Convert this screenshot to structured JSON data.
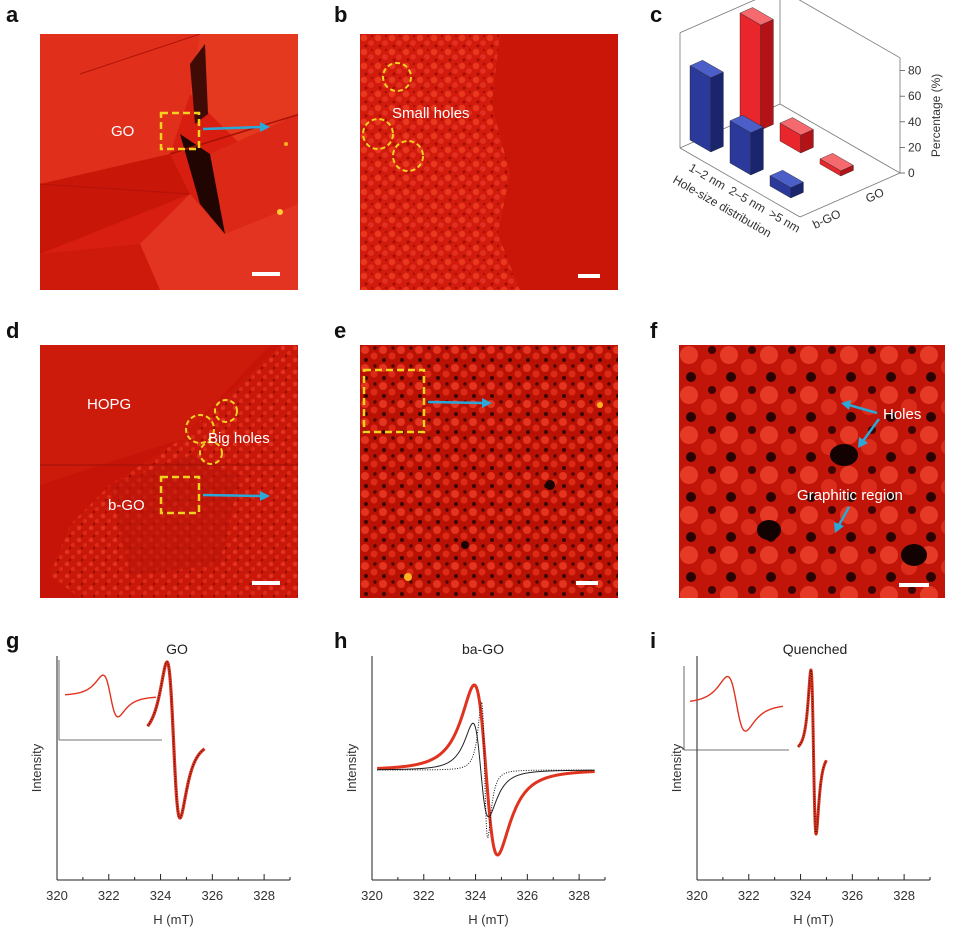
{
  "panel_letters": [
    "a",
    "b",
    "c",
    "d",
    "e",
    "f",
    "g",
    "h",
    "i"
  ],
  "afm": {
    "a": {
      "label_go": "GO"
    },
    "b": {
      "label_small_holes": "Small holes"
    },
    "d": {
      "label_hopg": "HOPG",
      "label_big_holes": "Big holes",
      "label_bgo": "b-GO"
    },
    "f": {
      "label_holes": "Holes",
      "label_graphitic": "Graphitic region"
    }
  },
  "colors": {
    "afm_red": "#d81e10",
    "arrow_blue": "#2aa8d8",
    "box_yellow": "#f2d21e",
    "bar_red": "#e8262b",
    "bar_blue": "#2b3a9a",
    "bgo_text": "#1e8fd6",
    "go_text": "#e8262b",
    "epr_fit": "#e0331f"
  },
  "chart_data": [
    {
      "type": "bar",
      "panel": "c",
      "title": "",
      "categories": [
        "1–2 nm",
        "2–5 nm",
        ">5 nm"
      ],
      "xlabel": "Hole-size distribution",
      "ylabel": "Percentage (%)",
      "zlim": [
        0,
        90
      ],
      "zticks": [
        "0",
        "20",
        "40",
        "60",
        "80"
      ],
      "series": [
        {
          "name": "b-GO",
          "values": [
            58,
            33,
            8
          ]
        },
        {
          "name": "GO",
          "values": [
            82,
            14,
            4
          ]
        }
      ]
    },
    {
      "type": "line",
      "panel": "g",
      "title": "GO",
      "xlabel": "H (mT)",
      "ylabel": "Intensity",
      "xlim": [
        320,
        329
      ],
      "xticks": [
        "320",
        "322",
        "324",
        "326",
        "328"
      ],
      "center": 324.5,
      "linewidth": 0.25,
      "range": [
        323.5,
        325.7
      ]
    },
    {
      "type": "line",
      "panel": "h",
      "title": "ba-GO",
      "xlabel": "H (mT)",
      "ylabel": "Intensity",
      "xlim": [
        320,
        329
      ],
      "xticks": [
        "320",
        "322",
        "324",
        "326",
        "328"
      ],
      "series": [
        {
          "name": "",
          "center": 324.4,
          "linewidth": 0.45,
          "amp": 1.0
        },
        {
          "name": "",
          "center": 324.2,
          "linewidth": 0.3,
          "amp": 0.55
        },
        {
          "name": "",
          "center": 324.35,
          "linewidth": 0.12,
          "amp": 0.8
        }
      ],
      "range": [
        320.2,
        328.6
      ]
    },
    {
      "type": "line",
      "panel": "i",
      "title": "Quenched",
      "xlabel": "H (mT)",
      "ylabel": "Intensity",
      "xlim": [
        320,
        329
      ],
      "xticks": [
        "320",
        "322",
        "324",
        "326",
        "328"
      ],
      "center": 324.5,
      "linewidth": 0.1,
      "range": [
        323.9,
        325.0
      ]
    }
  ]
}
